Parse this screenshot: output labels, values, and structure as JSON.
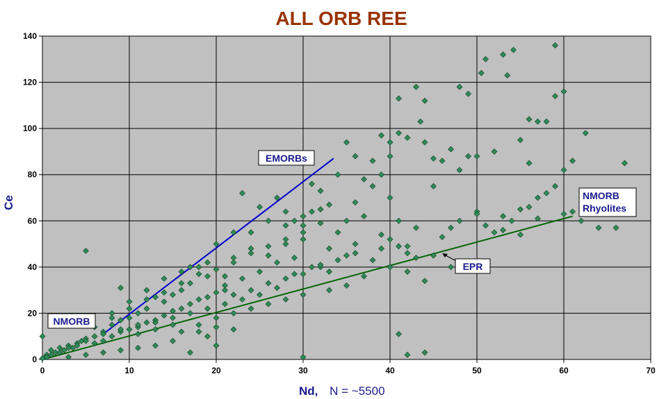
{
  "chart_data": {
    "type": "scatter",
    "title": "ALL ORB REE",
    "xlabel": "Nd,",
    "xlabel_suffix": "N = ~5500",
    "ylabel": "Ce",
    "xlim": [
      0,
      70
    ],
    "ylim": [
      0,
      140
    ],
    "x_ticks": [
      0,
      10,
      20,
      30,
      40,
      50,
      60,
      70
    ],
    "y_ticks": [
      0,
      20,
      40,
      60,
      80,
      100,
      120,
      140
    ],
    "grid": true,
    "colors": {
      "plot_bg": "#c0c0c0",
      "marker": "#2e8b57",
      "marker_edge": "#0b3d1e",
      "emorb_line": "#0000cc",
      "epr_line": "#006400",
      "title": "#993300",
      "axis_label": "#1a1a8c"
    },
    "series": [
      {
        "marker": "diamond",
        "points": [
          [
            5,
            47
          ],
          [
            43,
            118
          ],
          [
            50.5,
            124
          ],
          [
            51,
            130
          ],
          [
            53,
            132
          ],
          [
            54.2,
            134
          ],
          [
            59,
            136
          ],
          [
            53.5,
            123
          ],
          [
            57,
            103
          ],
          [
            60,
            116
          ],
          [
            59,
            114
          ],
          [
            62.5,
            98
          ],
          [
            67,
            85
          ],
          [
            58,
            103
          ],
          [
            61,
            86
          ],
          [
            64,
            57
          ],
          [
            66,
            57
          ],
          [
            42,
            2
          ],
          [
            41,
            11
          ],
          [
            44,
            3
          ],
          [
            30,
            1
          ],
          [
            41,
            113
          ],
          [
            44,
            112
          ],
          [
            48,
            118
          ],
          [
            49,
            115
          ],
          [
            43.5,
            103
          ],
          [
            39,
            97
          ],
          [
            40,
            88
          ],
          [
            45,
            75
          ],
          [
            45,
            87
          ],
          [
            50,
            88
          ],
          [
            55,
            95
          ],
          [
            56,
            85
          ],
          [
            56,
            104
          ],
          [
            60,
            82
          ],
          [
            52,
            90
          ],
          [
            57,
            70
          ],
          [
            52,
            55
          ],
          [
            47,
            57
          ],
          [
            44,
            34
          ],
          [
            42,
            38
          ],
          [
            35,
            94
          ],
          [
            36,
            88
          ],
          [
            34,
            80
          ],
          [
            38,
            75
          ],
          [
            40,
            70
          ],
          [
            37,
            62
          ],
          [
            41,
            60
          ],
          [
            43,
            57
          ],
          [
            38,
            43
          ],
          [
            40,
            40
          ],
          [
            39,
            54
          ],
          [
            42,
            49
          ],
          [
            46,
            53
          ],
          [
            48,
            60
          ],
          [
            53,
            62
          ],
          [
            50,
            64
          ],
          [
            55,
            65
          ],
          [
            57,
            61
          ],
          [
            59,
            75
          ],
          [
            62,
            60
          ],
          [
            32,
            65
          ],
          [
            30,
            62
          ],
          [
            28,
            58
          ],
          [
            27,
            70
          ],
          [
            25,
            66
          ],
          [
            23,
            72
          ],
          [
            22,
            55
          ],
          [
            20,
            50
          ],
          [
            24,
            48
          ],
          [
            26,
            45
          ],
          [
            29,
            44
          ],
          [
            31,
            40
          ],
          [
            33,
            38
          ],
          [
            35,
            45
          ],
          [
            36,
            50
          ],
          [
            34,
            55
          ],
          [
            30,
            52
          ],
          [
            28,
            50
          ],
          [
            27,
            42
          ],
          [
            25,
            38
          ],
          [
            23,
            35
          ],
          [
            21,
            32
          ],
          [
            19,
            36
          ],
          [
            17,
            33
          ],
          [
            16,
            30
          ],
          [
            15,
            28
          ],
          [
            14,
            25
          ],
          [
            13,
            27
          ],
          [
            12,
            22
          ],
          [
            11,
            20
          ],
          [
            10,
            18
          ],
          [
            9,
            17
          ],
          [
            8,
            15
          ],
          [
            7,
            12
          ],
          [
            6,
            10
          ],
          [
            5,
            9
          ],
          [
            4,
            7
          ],
          [
            3,
            6
          ],
          [
            2,
            5
          ],
          [
            1,
            4
          ],
          [
            0.5,
            2
          ],
          [
            0,
            10
          ],
          [
            0.3,
            1
          ],
          [
            1.5,
            3
          ],
          [
            2.5,
            4
          ],
          [
            3.5,
            5
          ],
          [
            4.5,
            8
          ],
          [
            6,
            7
          ],
          [
            7,
            8
          ],
          [
            8,
            10
          ],
          [
            9,
            12
          ],
          [
            10,
            13
          ],
          [
            11,
            14
          ],
          [
            12,
            16
          ],
          [
            13,
            17
          ],
          [
            14,
            19
          ],
          [
            15,
            21
          ],
          [
            16,
            22
          ],
          [
            17,
            24
          ],
          [
            18,
            26
          ],
          [
            19,
            27
          ],
          [
            20,
            29
          ],
          [
            21,
            30
          ],
          [
            22,
            28
          ],
          [
            24,
            30
          ],
          [
            26,
            33
          ],
          [
            28,
            35
          ],
          [
            30,
            37
          ],
          [
            32,
            40
          ],
          [
            18,
            40
          ],
          [
            16,
            38
          ],
          [
            14,
            35
          ],
          [
            12,
            30
          ],
          [
            10,
            25
          ],
          [
            9,
            31
          ],
          [
            8,
            20
          ],
          [
            17,
            3
          ],
          [
            19,
            10
          ],
          [
            22,
            13
          ],
          [
            20,
            6
          ],
          [
            15,
            8
          ],
          [
            13,
            6
          ],
          [
            11,
            5
          ],
          [
            9,
            4
          ],
          [
            7,
            3
          ],
          [
            5,
            2
          ],
          [
            3,
            1
          ],
          [
            18,
            15
          ],
          [
            20,
            18
          ],
          [
            22,
            20
          ],
          [
            24,
            22
          ],
          [
            26,
            24
          ],
          [
            28,
            26
          ],
          [
            30,
            28
          ],
          [
            33,
            30
          ],
          [
            35,
            32
          ],
          [
            37,
            36
          ],
          [
            15,
            15
          ],
          [
            13,
            13
          ],
          [
            11,
            11
          ],
          [
            16,
            12
          ],
          [
            18,
            12
          ],
          [
            20,
            14
          ],
          [
            21,
            36
          ],
          [
            19,
            42
          ],
          [
            17,
            40
          ],
          [
            22,
            44
          ],
          [
            24,
            55
          ],
          [
            26,
            60
          ],
          [
            28,
            64
          ],
          [
            29,
            60
          ],
          [
            31,
            64
          ],
          [
            33,
            67
          ],
          [
            32,
            73
          ],
          [
            31,
            76
          ],
          [
            30,
            58
          ],
          [
            33,
            48
          ],
          [
            35,
            60
          ],
          [
            36,
            68
          ],
          [
            37,
            78
          ],
          [
            38,
            86
          ],
          [
            39,
            80
          ],
          [
            40,
            94
          ],
          [
            41,
            98
          ],
          [
            42,
            96
          ],
          [
            44,
            94
          ],
          [
            46,
            86
          ],
          [
            47,
            91
          ],
          [
            48,
            82
          ],
          [
            49,
            88
          ],
          [
            50,
            63
          ],
          [
            51,
            58
          ],
          [
            53,
            56
          ],
          [
            54,
            60
          ],
          [
            55,
            54
          ],
          [
            56,
            66
          ],
          [
            58,
            72
          ],
          [
            60,
            63
          ],
          [
            61,
            64
          ],
          [
            47,
            40
          ],
          [
            45,
            45
          ],
          [
            43,
            44
          ],
          [
            42,
            46
          ],
          [
            41,
            49
          ],
          [
            40,
            52
          ],
          [
            39,
            48
          ],
          [
            36,
            46
          ],
          [
            34,
            43
          ],
          [
            32,
            41
          ],
          [
            29,
            37
          ],
          [
            27,
            31
          ],
          [
            25,
            28
          ],
          [
            23,
            26
          ],
          [
            21,
            24
          ],
          [
            19,
            22
          ],
          [
            17,
            20
          ],
          [
            15,
            18
          ],
          [
            13,
            16
          ],
          [
            11,
            15
          ],
          [
            9,
            13
          ],
          [
            7,
            11
          ],
          [
            5,
            8
          ],
          [
            4,
            6
          ],
          [
            3,
            5
          ],
          [
            2,
            3
          ],
          [
            1,
            2
          ],
          [
            0.5,
            1
          ],
          [
            0,
            0.5
          ],
          [
            6,
            14
          ],
          [
            8,
            18
          ],
          [
            10,
            22
          ],
          [
            12,
            26
          ],
          [
            14,
            29
          ],
          [
            16,
            33
          ],
          [
            18,
            37
          ],
          [
            20,
            39
          ],
          [
            22,
            42
          ],
          [
            24,
            46
          ],
          [
            26,
            49
          ],
          [
            28,
            52
          ],
          [
            30,
            55
          ],
          [
            32,
            59
          ]
        ]
      }
    ],
    "trend_lines": [
      {
        "label": "EMORBs",
        "from": [
          7,
          11
        ],
        "to": [
          33.5,
          87
        ]
      },
      {
        "label": "EPR",
        "from": [
          0,
          0
        ],
        "to": [
          61,
          62
        ]
      }
    ],
    "annotations": [
      {
        "text": "EMORBs"
      },
      {
        "text": "NMORB"
      },
      {
        "text": "EPR"
      },
      {
        "text": "NMORB",
        "text2": "Rhyolites"
      }
    ]
  }
}
